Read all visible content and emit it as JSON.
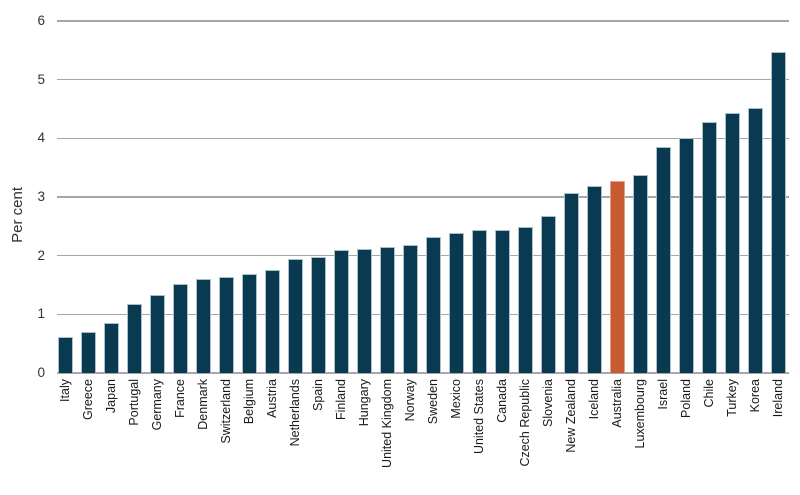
{
  "chart_data": {
    "type": "bar",
    "title": "",
    "ylabel": "Per cent",
    "xlabel": "",
    "ylim": [
      0,
      6
    ],
    "yticks": [
      0,
      1,
      2,
      3,
      4,
      5,
      6
    ],
    "grid": "horizontal",
    "legend": "none",
    "categories": [
      "Italy",
      "Greece",
      "Japan",
      "Portugal",
      "Germany",
      "France",
      "Denmark",
      "Switzerland",
      "Belgium",
      "Austria",
      "Netherlands",
      "Spain",
      "Finland",
      "Hungary",
      "United Kingdom",
      "Norway",
      "Sweden",
      "Mexico",
      "United States",
      "Canada",
      "Czech Republic",
      "Slovenia",
      "New Zealand",
      "Iceland",
      "Australia",
      "Luxembourg",
      "Israel",
      "Poland",
      "Chile",
      "Turkey",
      "Korea",
      "Ireland"
    ],
    "values": [
      0.62,
      0.7,
      0.86,
      1.17,
      1.33,
      1.51,
      1.6,
      1.64,
      1.68,
      1.76,
      1.94,
      1.98,
      2.1,
      2.11,
      2.14,
      2.19,
      2.31,
      2.38,
      2.44,
      2.44,
      2.49,
      2.68,
      3.07,
      3.19,
      3.27,
      3.38,
      3.86,
      4.0,
      4.28,
      4.43,
      4.51,
      5.47
    ],
    "highlight_category": "Australia",
    "colors": {
      "bar_fill": "#093a52",
      "bar_border": "#a9c0cb",
      "highlight_fill": "#c75a33",
      "highlight_border": "#e2a284",
      "gridline": "#a6a6a6",
      "text": "#333333"
    }
  }
}
